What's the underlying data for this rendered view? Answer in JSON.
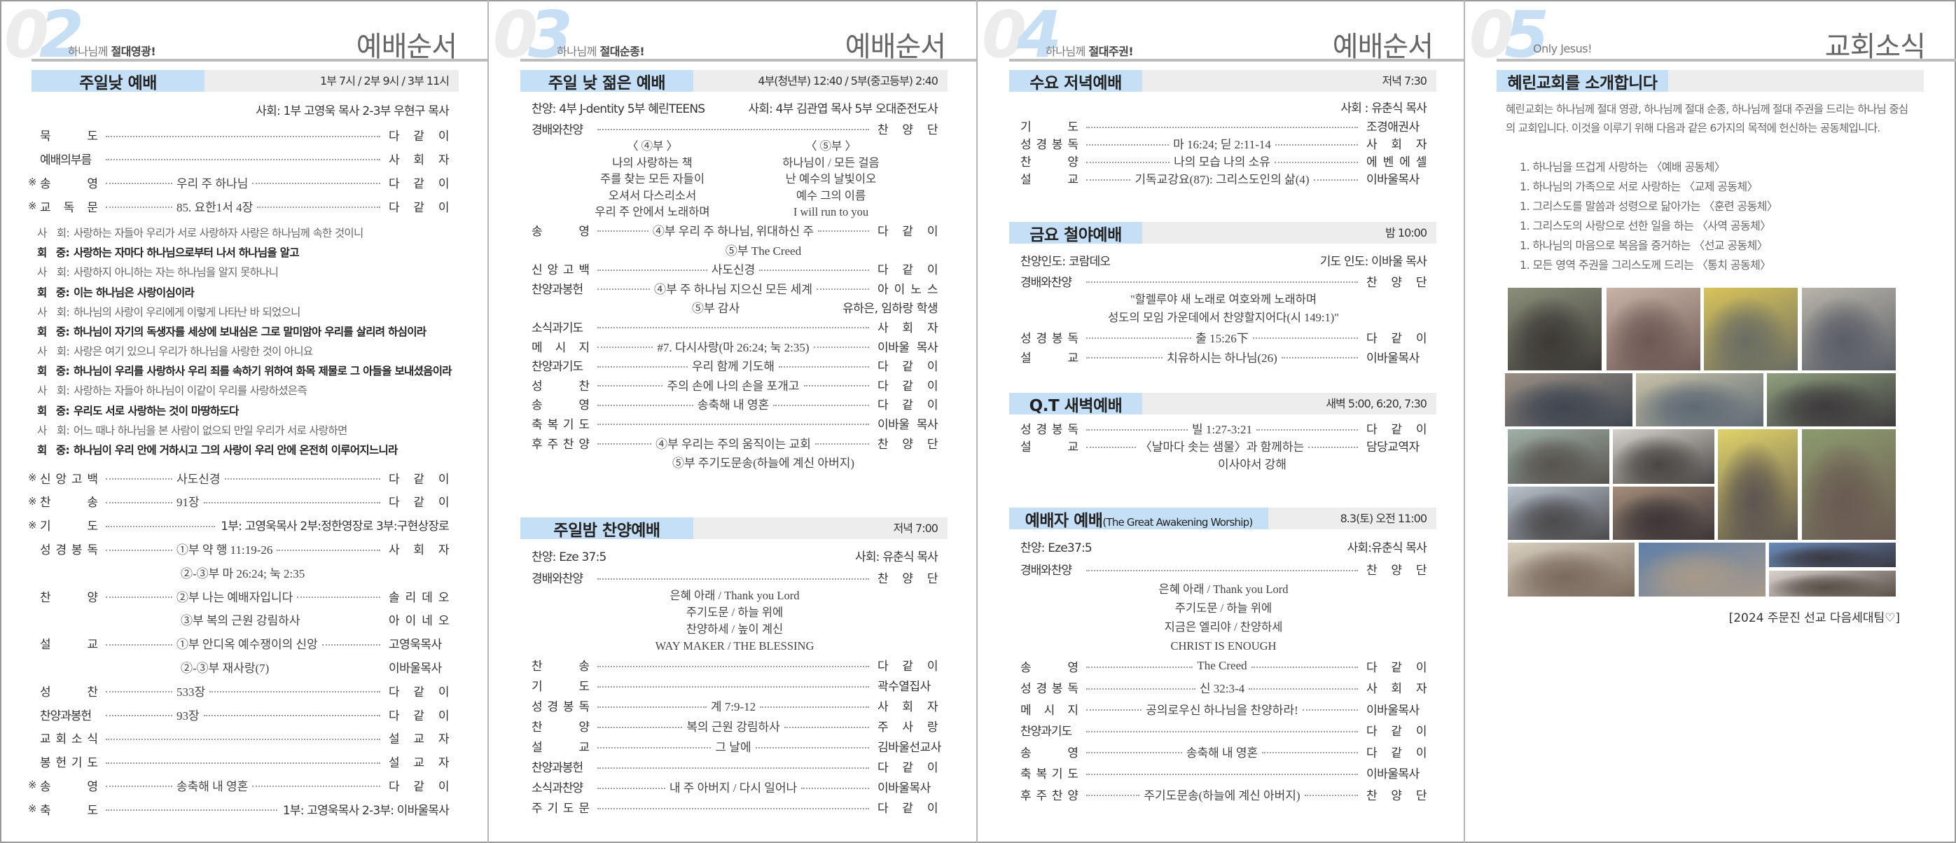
{
  "colors": {
    "bar_accent": "#c5e0f6",
    "bar_base": "#ededed",
    "number_accent": "#c6dff4"
  },
  "panels": [
    {
      "number": "02",
      "subtitle": "하나님께 ",
      "subtitle_bold": "절대영광!",
      "title": "예배순서",
      "sections": [
        {
          "name": "주일낮 예배",
          "time": "1부 7시 / 2부 9시 / 3부 11시",
          "rows": [
            {
              "type": "meta",
              "left": "",
              "right": "사회: 1부 고영욱 목사 2-3부 우현구 목사"
            },
            {
              "type": "item",
              "label": "묵 도",
              "right": "다 같 이"
            },
            {
              "type": "item",
              "label": "예배의부름",
              "right": "사 회 자"
            },
            {
              "type": "item",
              "mark": "※",
              "label": "송 영",
              "center": "우리 주 하나님",
              "right": "다 같 이"
            },
            {
              "type": "item",
              "mark": "※",
              "label": "교 독 문",
              "center": "85. 요한1서 4장",
              "right": "다 같 이"
            },
            {
              "type": "reading",
              "lines": [
                {
                  "speaker": "사 회:",
                  "text": "사랑하는 자들아 우리가 서로 사랑하자 사랑은 하나님께 속한 것이니",
                  "bold": false
                },
                {
                  "speaker": "회 중:",
                  "text": "사랑하는 자마다 하나님으로부터 나서 하나님을 알고",
                  "bold": true
                },
                {
                  "speaker": "사 회:",
                  "text": "사랑하지 아니하는 자는 하나님을 알지 못하나니",
                  "bold": false
                },
                {
                  "speaker": "회 중:",
                  "text": "이는 하나님은 사랑이심이라",
                  "bold": true
                },
                {
                  "speaker": "사 회:",
                  "text": "하나님의 사랑이 우리에게 이렇게 나타난 바 되었으니",
                  "bold": false
                },
                {
                  "speaker": "회 중:",
                  "text": "하나님이 자기의 독생자를 세상에 보내심은 그로 말미암아 우리를 살리려 하심이라",
                  "bold": true
                },
                {
                  "speaker": "사 회:",
                  "text": "사랑은 여기 있으니 우리가 하나님을 사랑한 것이 아니요",
                  "bold": false
                },
                {
                  "speaker": "회 중:",
                  "text": "하나님이 우리를 사랑하사 우리 죄를 속하기 위하여 화목 제물로 그 아들을 보내셨음이라",
                  "bold": true
                },
                {
                  "speaker": "사 회:",
                  "text": "사랑하는 자들아 하나님이 이같이 우리를 사랑하셨은즉",
                  "bold": false
                },
                {
                  "speaker": "회 중:",
                  "text": "우리도 서로 사랑하는 것이 마땅하도다",
                  "bold": true
                },
                {
                  "speaker": "사 회:",
                  "text": "어느 때나 하나님을 본 사람이 없으되 만일 우리가 서로 사랑하면",
                  "bold": false
                },
                {
                  "speaker": "회 중:",
                  "text": "하나님이 우리 안에 거하시고 그의 사랑이 우리 안에 온전히 이루어지느니라",
                  "bold": true
                }
              ]
            },
            {
              "type": "item",
              "mark": "※",
              "label": "신 앙 고 백",
              "center": "사도신경",
              "right": "다 같 이"
            },
            {
              "type": "item",
              "mark": "※",
              "label": "찬 송",
              "center": "91장",
              "right": "다 같 이"
            },
            {
              "type": "item",
              "mark": "※",
              "label": "기 도",
              "wide": "1부: 고영욱목사  2부:정한영장로  3부:구현상장로"
            },
            {
              "type": "item",
              "label": "성 경 봉 독",
              "center": "①부 약 행 11:19-26",
              "right": "사 회 자"
            },
            {
              "type": "sub",
              "center": "②-③부 마 26:24; 눅 2:35"
            },
            {
              "type": "item",
              "label": "찬 양",
              "center": "②부 나는 예배자입니다",
              "right": "솔 리 데 오"
            },
            {
              "type": "sub",
              "center": "③부 복의 근원 강림하사",
              "right": "아 이 네 오"
            },
            {
              "type": "item",
              "label": "설 교",
              "center": "①부 안디옥 예수쟁이의 신앙",
              "right": "고영욱목사"
            },
            {
              "type": "sub",
              "center": "②-③부 재사랑(7)",
              "right": "이바울목사"
            },
            {
              "type": "item",
              "label": "성 찬",
              "center": "533장",
              "right": "다 같 이"
            },
            {
              "type": "item",
              "label": "찬양과봉헌",
              "center": "93장",
              "right": "다 같 이"
            },
            {
              "type": "item",
              "label": "교 회 소 식",
              "right": "설 교 자"
            },
            {
              "type": "item",
              "label": "봉 헌 기 도",
              "right": "설 교 자"
            },
            {
              "type": "item",
              "mark": "※",
              "label": "송 영",
              "center": "송축해 내 영혼",
              "right": "다 같 이"
            },
            {
              "type": "item",
              "mark": "※",
              "label": "축 도",
              "wide": "1부: 고영욱목사  2-3부: 이바울목사"
            }
          ]
        }
      ]
    },
    {
      "number": "03",
      "subtitle": "하나님께 ",
      "subtitle_bold": "절대순종!",
      "title": "예배순서",
      "sections": [
        {
          "name": "주일 낮 젊은 예배",
          "time": "4부(청년부) 12:40 / 5부(중고등부) 2:40",
          "rows": [
            {
              "type": "meta",
              "left": "찬양: 4부 J-dentity   5부 혜린TEENS",
              "right": "사회: 4부 김관엽 목사   5부 오대준전도사"
            },
            {
              "type": "item",
              "label": "경배와찬양",
              "right": "찬 양 단"
            },
            {
              "type": "lyrics2",
              "columns": [
                [
                  "〈 ④부 〉",
                  "나의 사랑하는 책",
                  "주를 찾는 모든 자들이",
                  "오셔서 다스리소서",
                  "우리 주 안에서 노래하며"
                ],
                [
                  "〈 ⑤부 〉",
                  "하나님이 / 모든 걸음",
                  "난 예수의 날빛이오",
                  "예수 그의 이름",
                  "I will run to you"
                ]
              ]
            },
            {
              "type": "item",
              "label": "송 영",
              "center": "④부 우리 주 하나님, 위대하신 주",
              "right": "다 같 이"
            },
            {
              "type": "sub",
              "center": "⑤부 The Creed"
            },
            {
              "type": "item",
              "label": "신 앙 고 백",
              "center": "사도신경",
              "right": "다 같 이"
            },
            {
              "type": "item",
              "label": "찬양과봉헌",
              "center": "④부 주 하나님 지으신 모든 세계",
              "right": "아 이 노 스"
            },
            {
              "type": "sub",
              "center": "⑤부 감사",
              "right": "유하은, 임하랑 학생"
            },
            {
              "type": "item",
              "label": "소식과기도",
              "right": "사 회 자"
            },
            {
              "type": "item",
              "label": "메 시 지",
              "center": "#7. 다시사랑(마 26:24; 눅 2:35)",
              "right": "이바울 목사"
            },
            {
              "type": "item",
              "label": "찬양과기도",
              "center": "우리 함께 기도해",
              "right": "다 같 이"
            },
            {
              "type": "item",
              "label": "성 찬",
              "center": "주의 손에 나의 손을 포개고",
              "right": "다 같 이"
            },
            {
              "type": "item",
              "label": "송 영",
              "center": "송축해 내 영혼",
              "right": "다 같 이"
            },
            {
              "type": "item",
              "label": "축 복 기 도",
              "right": "이바울 목사"
            },
            {
              "type": "item",
              "label": "후 주 찬 양",
              "center": "④부 우리는 주의 움직이는 교회",
              "right": "찬 양 단"
            },
            {
              "type": "sub",
              "center": "⑤부 주기도문송(하늘에 계신 아버지)"
            }
          ]
        },
        {
          "name": "주일밤 찬양예배",
          "time": "저녁 7:00",
          "rows": [
            {
              "type": "meta",
              "left": "찬양: Eze 37:5",
              "right": "사회: 유춘식 목사"
            },
            {
              "type": "item",
              "label": "경배와찬양",
              "right": "찬 양 단"
            },
            {
              "type": "lyrics",
              "lines": [
                "은혜 아래 / Thank you Lord",
                "주기도문 / 하늘 위에",
                "찬양하세 / 높이 계신",
                "WAY MAKER / THE BLESSING"
              ]
            },
            {
              "type": "item",
              "label": "찬 송",
              "right": "다 같 이"
            },
            {
              "type": "item",
              "label": "기 도",
              "right": "곽수열집사"
            },
            {
              "type": "item",
              "label": "성 경 봉 독",
              "center": "계 7:9-12",
              "right": "사 회 자"
            },
            {
              "type": "item",
              "label": "찬 양",
              "center": "복의 근원 강림하사",
              "right": "주 사 랑"
            },
            {
              "type": "item",
              "label": "설 교",
              "center": "그 날에",
              "right": "김바울선교사"
            },
            {
              "type": "item",
              "label": "찬양과봉헌",
              "right": "다 같 이"
            },
            {
              "type": "item",
              "label": "소식과찬양",
              "center": "내 주 아버지 / 다시 일어나",
              "right": "이바울목사"
            },
            {
              "type": "item",
              "label": "주 기 도 문",
              "right": "다 같 이"
            }
          ]
        }
      ]
    },
    {
      "number": "04",
      "subtitle": "하나님께 ",
      "subtitle_bold": "절대주권!",
      "title": "예배순서",
      "sections": [
        {
          "name": "수요 저녁예배",
          "time": "저녁 7:30",
          "rows": [
            {
              "type": "meta",
              "left": "",
              "right": "사회 : 유춘식 목사"
            },
            {
              "type": "item",
              "label": "기 도",
              "right": "조경애권사"
            },
            {
              "type": "item",
              "label": "성 경 봉 독",
              "center": "마 16:24; 딛 2:11-14",
              "right": "사 회 자"
            },
            {
              "type": "item",
              "label": "찬 양",
              "center": "나의 모습 나의 소유",
              "right": "에 벤 에 셀"
            },
            {
              "type": "item",
              "label": "설 교",
              "center": "기독교강요(87): 그리스도인의 삶(4)",
              "right": "이바울목사"
            }
          ]
        },
        {
          "name": "금요 철야예배",
          "time": "밤 10:00",
          "rows": [
            {
              "type": "meta",
              "left": "찬양인도: 코람데오",
              "right": "기도 인도: 이바울 목사"
            },
            {
              "type": "item",
              "label": "경배와찬양",
              "right": "찬 양 단"
            },
            {
              "type": "lyrics",
              "lines": [
                "\"할렐루야 새 노래로 여호와께 노래하며",
                "성도의 모임 가운데에서 찬양할지어다(시 149:1)\""
              ]
            },
            {
              "type": "item",
              "label": "성 경 봉 독",
              "center": "출 15:26下",
              "right": "다 같 이"
            },
            {
              "type": "item",
              "label": "설 교",
              "center": "치유하시는 하나님(26)",
              "right": "이바울목사"
            }
          ]
        },
        {
          "name": "Q.T 새벽예배",
          "time": "새벽 5:00, 6:20, 7:30",
          "rows": [
            {
              "type": "item",
              "label": "성 경 봉 독",
              "center": "빌 1:27-3:21",
              "right": "다 같 이"
            },
            {
              "type": "item",
              "label": "설 교",
              "center": "〈날마다 솟는 샘물〉과 함께하는",
              "right": "담당교역자"
            },
            {
              "type": "sub",
              "center": "이사야서 강해"
            }
          ]
        },
        {
          "name": "예배자 예배",
          "name_small": "(The Great Awakening Worship)",
          "time": "8.3(토) 오전 11:00",
          "rows": [
            {
              "type": "meta",
              "left": "찬양: Eze37:5",
              "right": "사회:유춘식 목사"
            },
            {
              "type": "item",
              "label": "경배와찬양",
              "right": "찬 양 단"
            },
            {
              "type": "lyrics",
              "lines": [
                "은혜 아래 / Thank you Lord",
                "주기도문 / 하늘 위에",
                "지금은 엘리야 / 찬양하세",
                "CHRIST IS ENOUGH"
              ]
            },
            {
              "type": "item",
              "label": "송 영",
              "center": "The Creed",
              "right": "다 같 이"
            },
            {
              "type": "item",
              "label": "성 경 봉 독",
              "center": "신 32:3-4",
              "right": "사 회 자"
            },
            {
              "type": "item",
              "label": "메 시 지",
              "center": "공의로우신 하나님을 찬양하라!",
              "right": "이바울목사"
            },
            {
              "type": "item",
              "label": "찬양과기도",
              "right": "다 같 이"
            },
            {
              "type": "item",
              "label": "송 영",
              "center": "송축해 내 영혼",
              "right": "다 같 이"
            },
            {
              "type": "item",
              "label": "축 복 기 도",
              "right": "이바울목사"
            },
            {
              "type": "item",
              "label": "후 주 찬 양",
              "center": "주기도문송(하늘에 계신 아버지)",
              "right": "찬 양 단"
            }
          ]
        }
      ]
    },
    {
      "number": "05",
      "subtitle": "Only Jesus!",
      "subtitle_bold": "",
      "title": "교회소식",
      "sections": [
        {
          "name": "혜린교회를 소개합니다",
          "time": "",
          "intro": "혜린교회는 하나님께 절대 영광, 하나님께 절대 순종, 하나님께 절대 주권을 드리는 하나님 중심의 교회입니다. 이것을 이루기 위해 다음과 같은 6가지의 목적에 헌신하는 공동체입니다.",
          "list": [
            "1. 하나님을 뜨겁게 사랑하는 〈예배 공동체〉",
            "1. 하나님의 가족으로 서로 사랑하는 〈교제 공동체〉",
            "1. 그리스도를 말씀과 성령으로 닮아가는 〈훈련 공동체〉",
            "1. 그리스도의 사랑으로 선한 일을 하는 〈사역 공동체〉",
            "1. 하나님의 마음으로 복음을 증거하는 〈선교 공동체〉",
            "1. 모든 영역 주권을 그리스도께 드리는 〈통치 공동체〉"
          ]
        }
      ],
      "caption": "[2024 주문진 선교 다음세대팀♡]"
    }
  ]
}
